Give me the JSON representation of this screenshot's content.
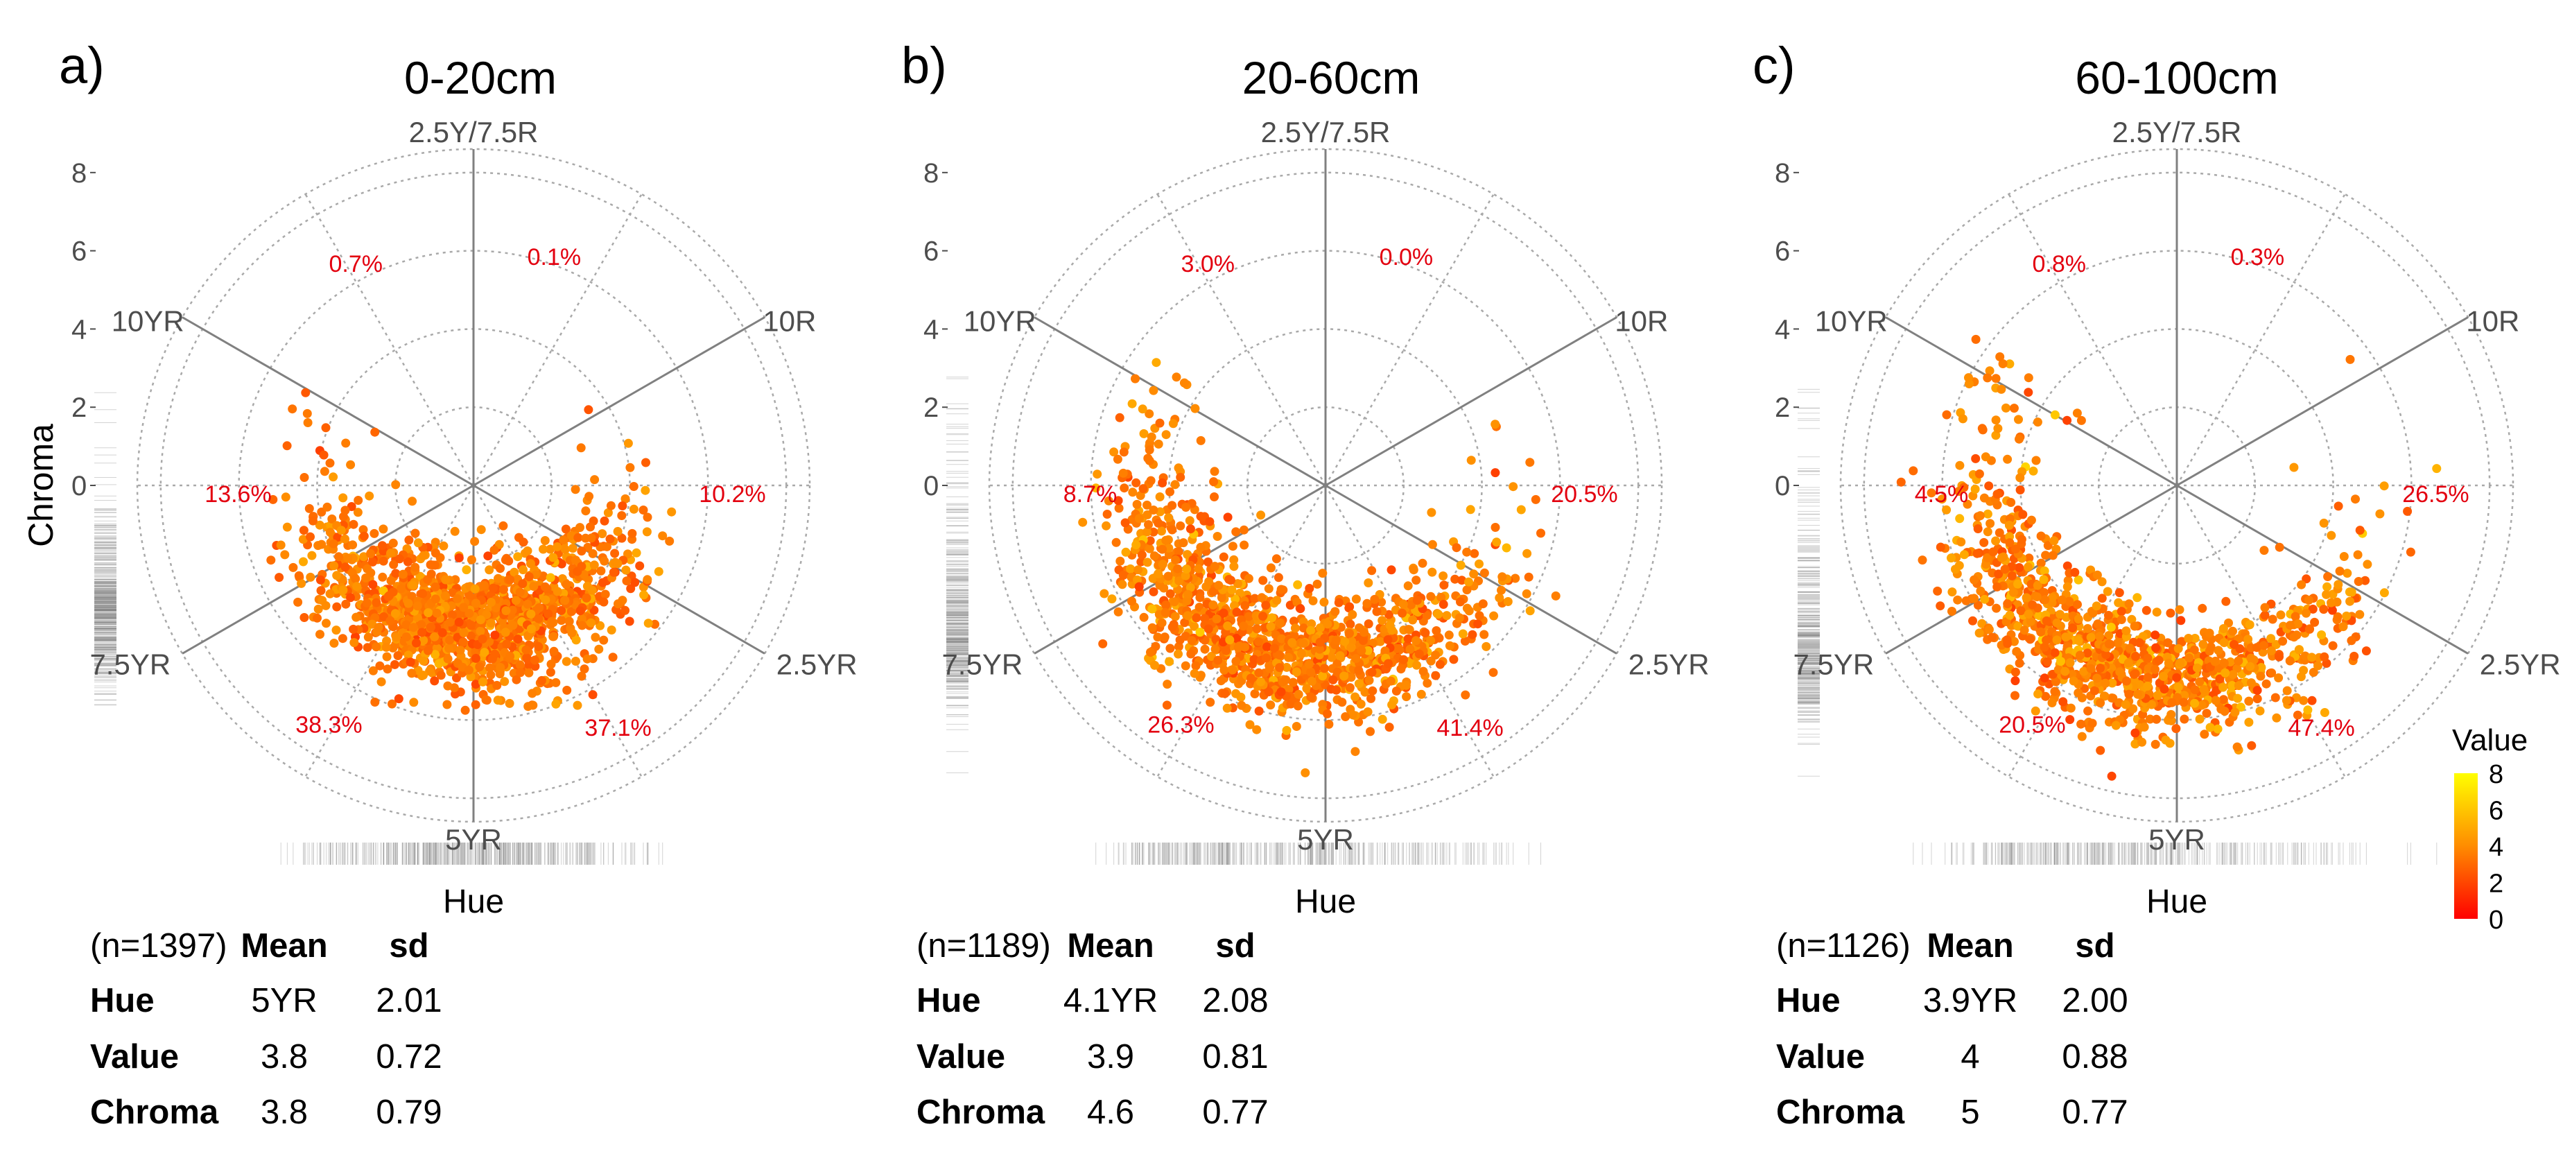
{
  "figure": {
    "y_axis_label": "Chroma",
    "x_axis_label": "Hue",
    "legend": {
      "title": "Value",
      "ticks": [
        "8",
        "6",
        "4",
        "2",
        "0"
      ],
      "range": [
        0,
        8
      ],
      "colors": [
        "#ff0000",
        "#ff8c00",
        "#ffff00"
      ]
    },
    "stats_header": {
      "mean": "Mean",
      "sd": "sd"
    },
    "stats_rows": [
      "Hue",
      "Value",
      "Chroma"
    ]
  },
  "chart_data": [
    {
      "type": "scatter",
      "subtype": "polar",
      "panel_letter": "a)",
      "title": "0-20cm",
      "n_label": "(n=1397)",
      "radial_axis": {
        "label": "Chroma",
        "ticks": [
          "0",
          "2",
          "4",
          "6",
          "8"
        ],
        "range": [
          0,
          8
        ]
      },
      "hue_labels": [
        "2.5Y/7.5R",
        "10R",
        "2.5YR",
        "5YR",
        "7.5YR",
        "10YR"
      ],
      "sector_percentages": {
        "top_right": "0.1%",
        "right": "10.2%",
        "bottom_right": "37.1%",
        "bottom_left": "38.3%",
        "left": "13.6%",
        "top_left": "0.7%"
      },
      "stats": {
        "hue": {
          "mean": "5YR",
          "sd": "2.01"
        },
        "value": {
          "mean": "3.8",
          "sd": "0.72"
        },
        "chroma": {
          "mean": "3.8",
          "sd": "0.79"
        }
      },
      "distribution": {
        "theta_mean_deg": 180,
        "theta_sd_deg": 42,
        "chroma_mean": 3.8,
        "chroma_sd": 0.79,
        "value_mean": 3.8,
        "value_sd": 0.72,
        "n": 1397
      }
    },
    {
      "type": "scatter",
      "subtype": "polar",
      "panel_letter": "b)",
      "title": "20-60cm",
      "n_label": "(n=1189)",
      "radial_axis": {
        "label": "Chroma",
        "ticks": [
          "0",
          "2",
          "4",
          "6",
          "8"
        ],
        "range": [
          0,
          8
        ]
      },
      "hue_labels": [
        "2.5Y/7.5R",
        "10R",
        "2.5YR",
        "5YR",
        "7.5YR",
        "10YR"
      ],
      "sector_percentages": {
        "top_right": "0.0%",
        "right": "20.5%",
        "bottom_right": "41.4%",
        "bottom_left": "26.3%",
        "left": "8.7%",
        "top_left": "3.0%"
      },
      "stats": {
        "hue": {
          "mean": "4.1YR",
          "sd": "2.08"
        },
        "value": {
          "mean": "3.9",
          "sd": "0.81"
        },
        "chroma": {
          "mean": "4.6",
          "sd": "0.77"
        }
      },
      "distribution": {
        "theta_mean_deg": 162,
        "theta_sd_deg": 44,
        "chroma_mean": 4.6,
        "chroma_sd": 0.77,
        "value_mean": 3.9,
        "value_sd": 0.81,
        "n": 1189
      }
    },
    {
      "type": "scatter",
      "subtype": "polar",
      "panel_letter": "c)",
      "title": "60-100cm",
      "n_label": "(n=1126)",
      "radial_axis": {
        "label": "Chroma",
        "ticks": [
          "0",
          "2",
          "4",
          "6",
          "8"
        ],
        "range": [
          0,
          8
        ]
      },
      "hue_labels": [
        "2.5Y/7.5R",
        "10R",
        "2.5YR",
        "5YR",
        "7.5YR",
        "10YR"
      ],
      "sector_percentages": {
        "top_right": "0.3%",
        "right": "26.5%",
        "bottom_right": "47.4%",
        "bottom_left": "20.5%",
        "left": "4.5%",
        "top_left": "0.8%"
      },
      "stats": {
        "hue": {
          "mean": "3.9YR",
          "sd": "2.00"
        },
        "value": {
          "mean": "4",
          "sd": "0.88"
        },
        "chroma": {
          "mean": "5",
          "sd": "0.77"
        }
      },
      "distribution": {
        "theta_mean_deg": 158,
        "theta_sd_deg": 44,
        "chroma_mean": 5.0,
        "chroma_sd": 0.77,
        "value_mean": 4.0,
        "value_sd": 0.88,
        "n": 1126
      }
    }
  ]
}
